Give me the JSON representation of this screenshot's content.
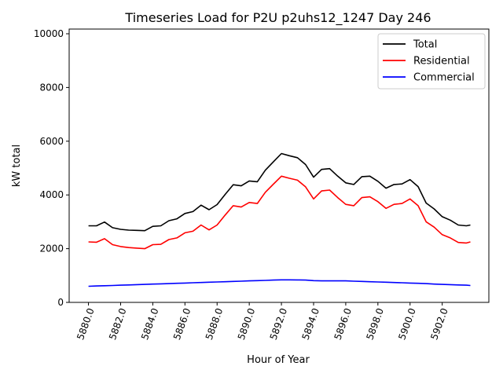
{
  "chart_data": {
    "type": "line",
    "title": "Timeseries Load for P2U p2uhs12_1247  Day 246",
    "xlabel": "Hour of Year",
    "ylabel": "kW total",
    "xlim": [
      5878.8,
      5904.9
    ],
    "ylim": [
      0,
      10175
    ],
    "xticks": [
      5880,
      5882,
      5884,
      5886,
      5888,
      5890,
      5892,
      5894,
      5896,
      5898,
      5900,
      5902
    ],
    "xtick_labels": [
      "5880.0",
      "5882.0",
      "5884.0",
      "5886.0",
      "5888.0",
      "5890.0",
      "5892.0",
      "5894.0",
      "5896.0",
      "5898.0",
      "5900.0",
      "5902.0"
    ],
    "yticks": [
      0,
      2000,
      4000,
      6000,
      8000,
      10000
    ],
    "ytick_labels": [
      "0",
      "2000",
      "4000",
      "6000",
      "8000",
      "10000"
    ],
    "grid": false,
    "legend_position": "top-right",
    "x": [
      5880,
      5880.5,
      5881,
      5881.5,
      5882,
      5882.5,
      5883,
      5883.5,
      5884,
      5884.5,
      5885,
      5885.5,
      5886,
      5886.5,
      5887,
      5887.5,
      5888,
      5888.5,
      5889,
      5889.5,
      5890,
      5890.5,
      5891,
      5891.5,
      5892,
      5892.5,
      5893,
      5893.5,
      5894,
      5894.5,
      5895,
      5895.5,
      5896,
      5896.5,
      5897,
      5897.5,
      5898,
      5898.5,
      5899,
      5899.5,
      5900,
      5900.5,
      5901,
      5901.5,
      5902,
      5902.5,
      5903,
      5903.5,
      5903.75
    ],
    "series": [
      {
        "name": "Total",
        "color": "#000000",
        "values": [
          2850,
          2850,
          2990,
          2780,
          2720,
          2690,
          2680,
          2670,
          2830,
          2850,
          3040,
          3110,
          3310,
          3380,
          3620,
          3450,
          3640,
          4020,
          4380,
          4340,
          4520,
          4490,
          4920,
          5230,
          5540,
          5460,
          5385,
          5130,
          4660,
          4950,
          4980,
          4700,
          4450,
          4390,
          4680,
          4700,
          4510,
          4250,
          4390,
          4410,
          4570,
          4310,
          3700,
          3480,
          3190,
          3060,
          2880,
          2850,
          2880
        ]
      },
      {
        "name": "Residential",
        "color": "#ff0000",
        "values": [
          2250,
          2240,
          2370,
          2150,
          2080,
          2040,
          2020,
          2000,
          2150,
          2160,
          2340,
          2400,
          2590,
          2650,
          2880,
          2700,
          2880,
          3250,
          3600,
          3550,
          3720,
          3680,
          4100,
          4400,
          4700,
          4620,
          4550,
          4300,
          3850,
          4150,
          4180,
          3900,
          3650,
          3600,
          3900,
          3930,
          3750,
          3500,
          3650,
          3680,
          3850,
          3600,
          3000,
          2800,
          2520,
          2400,
          2230,
          2210,
          2250
        ]
      },
      {
        "name": "Commercial",
        "color": "#0000ff",
        "values": [
          600,
          610,
          620,
          630,
          640,
          650,
          660,
          670,
          680,
          690,
          700,
          710,
          720,
          730,
          740,
          750,
          760,
          770,
          780,
          790,
          800,
          810,
          820,
          830,
          840,
          840,
          835,
          830,
          810,
          800,
          800,
          800,
          800,
          790,
          780,
          770,
          760,
          750,
          740,
          730,
          720,
          710,
          700,
          680,
          670,
          660,
          650,
          640,
          630
        ]
      }
    ]
  }
}
